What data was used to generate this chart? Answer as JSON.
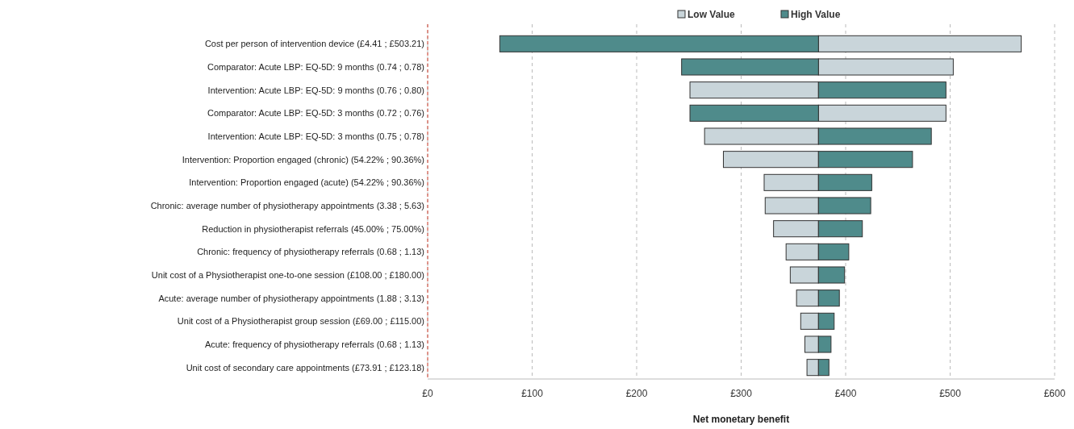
{
  "chart_data": {
    "type": "bar",
    "orientation": "horizontal",
    "xlabel": "Net monetary benefit",
    "categories": [
      "Cost per person of intervention device (£4.41 ; £503.21)",
      "Comparator: Acute LBP: EQ-5D: 9 months (0.74 ; 0.78)",
      "Intervention: Acute LBP: EQ-5D: 9 months (0.76 ; 0.80)",
      "Comparator: Acute LBP: EQ-5D: 3 months (0.72 ; 0.76)",
      "Intervention: Acute LBP: EQ-5D: 3 months (0.75 ; 0.78)",
      "Intervention: Proportion engaged (chronic) (54.22% ; 90.36%)",
      "Intervention: Proportion engaged (acute) (54.22% ; 90.36%)",
      "Chronic: average number of physiotherapy appointments (3.38 ; 5.63)",
      "Reduction in physiotherapist referrals (45.00% ; 75.00%)",
      "Chronic: frequency of physiotherapy referrals (0.68 ; 1.13)",
      "Unit cost of a Physiotherapist one-to-one session (£108.00 ; £180.00)",
      "Acute: average number of physiotherapy appointments (1.88 ; 3.13)",
      "Unit cost of a Physiotherapist group session (£69.00 ; £115.00)",
      "Acute: frequency of physiotherapy referrals (0.68 ; 1.13)",
      "Unit cost of secondary care appointments (£73.91 ; £123.18)"
    ],
    "series": [
      {
        "name": "Low Value",
        "color": "#c9d5da",
        "base": [
          374,
          374,
          374,
          374,
          374,
          374,
          374,
          374,
          374,
          374,
          374,
          374,
          374,
          374,
          374
        ],
        "values": [
          194,
          129,
          -123,
          122,
          -109,
          -91,
          -52,
          -51,
          -43,
          -31,
          -27,
          -21,
          -17,
          -13,
          -11
        ]
      },
      {
        "name": "High Value",
        "color": "#4f8b8b",
        "base": [
          374,
          374,
          374,
          374,
          374,
          374,
          374,
          374,
          374,
          374,
          374,
          374,
          374,
          374,
          374
        ],
        "values": [
          -305,
          -131,
          122,
          -123,
          108,
          90,
          51,
          50,
          42,
          29,
          25,
          20,
          15,
          12,
          10
        ]
      }
    ],
    "xlim": [
      0,
      600
    ],
    "xticks": [
      {
        "value": 0,
        "label": "£0"
      },
      {
        "value": 100,
        "label": "£100"
      },
      {
        "value": 200,
        "label": "£200"
      },
      {
        "value": 300,
        "label": "£300"
      },
      {
        "value": 400,
        "label": "£400"
      },
      {
        "value": 500,
        "label": "£500"
      },
      {
        "value": 600,
        "label": "£600"
      }
    ],
    "ref_lines": [
      {
        "axis": "x",
        "value": 0,
        "color": "#d9776b",
        "line_style": "dashed"
      }
    ],
    "grid": "x",
    "legend": "top"
  }
}
